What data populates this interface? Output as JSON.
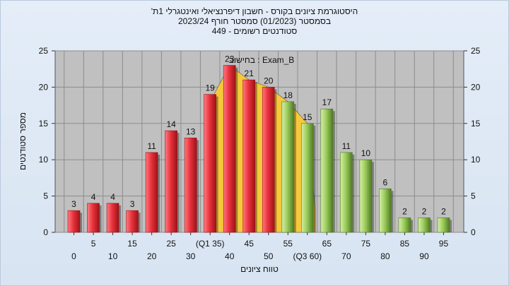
{
  "header": {
    "title_lines": [
      "'היסטוגרמת ציונים בקורס - חשבון דיפרנציאלי ואינטגרלי 1ת",
      "בסמסטר  (01/2023)  סמסטר חורף  2023/24",
      "סטודנטים רשומים - 449"
    ]
  },
  "chart_data": {
    "type": "bar",
    "categories": [
      "0",
      "5",
      "10",
      "15",
      "20",
      "25",
      "30",
      "(Q1 35)",
      "40",
      "45",
      "50",
      "55",
      "(Q3 60)",
      "65",
      "70",
      "75",
      "80",
      "85",
      "90",
      "95"
    ],
    "values": [
      3,
      4,
      4,
      3,
      11,
      14,
      13,
      19,
      23,
      21,
      20,
      18,
      15,
      17,
      11,
      10,
      6,
      2,
      2,
      2
    ],
    "bar_groups": [
      "red",
      "red",
      "red",
      "red",
      "red",
      "red",
      "red",
      "red",
      "red",
      "red",
      "red",
      "green",
      "green",
      "green",
      "green",
      "green",
      "green",
      "green",
      "green",
      "green"
    ],
    "ylim": [
      0,
      25
    ],
    "yticks": [
      0,
      5,
      10,
      15,
      20,
      25
    ],
    "xlabel": "טווח ציונים",
    "ylabel": "מספר סטודנטים",
    "annotation": "בחישוב : Exam_B",
    "grid": true,
    "interquartile_band": true,
    "colors": {
      "plot_bg": "#c0c0c0",
      "grid": "#8c8c8c",
      "red_bar": "#e8323c",
      "red_bar_dark": "#9e1218",
      "green_bar": "#9ccc5c",
      "green_bar_dark": "#4e7a22",
      "band": "#f6c83c"
    }
  }
}
